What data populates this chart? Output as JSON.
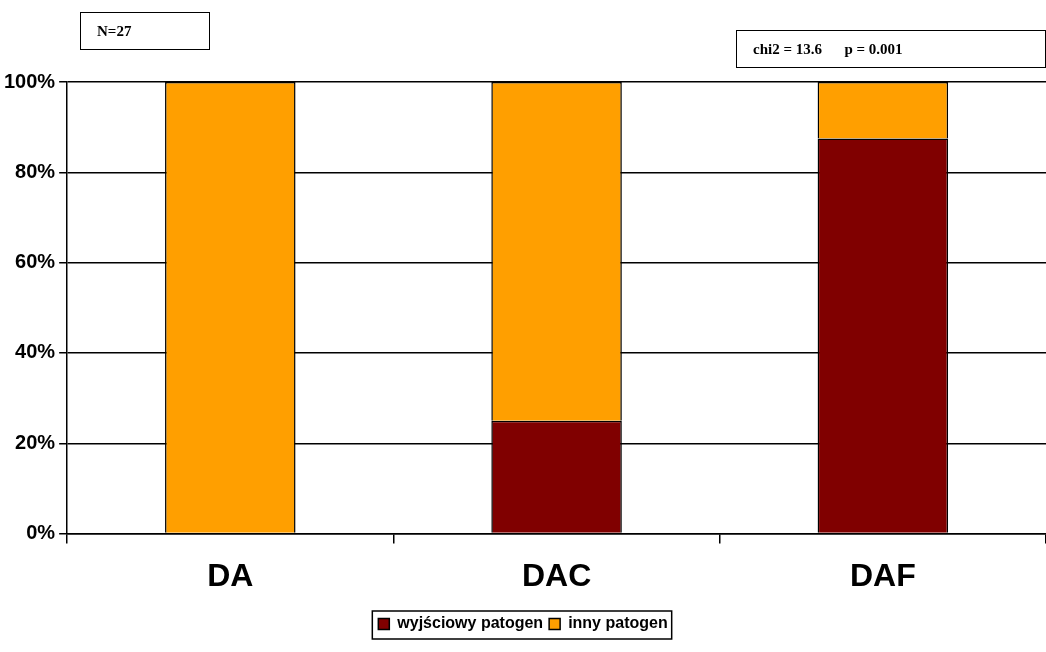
{
  "chart_data": {
    "type": "bar",
    "stacked": true,
    "categories": [
      "DA",
      "DAC",
      "DAF"
    ],
    "series": [
      {
        "name": "wyjściowy patogen",
        "color": "#800000",
        "values": [
          0,
          25,
          87.5
        ]
      },
      {
        "name": "inny patogen",
        "color": "#ff9f00",
        "values": [
          100,
          75,
          12.5
        ]
      }
    ],
    "ylim": [
      0,
      100
    ],
    "yticks": [
      {
        "value": 0,
        "label": "0%"
      },
      {
        "value": 20,
        "label": "20%"
      },
      {
        "value": 40,
        "label": "40%"
      },
      {
        "value": 60,
        "label": "60%"
      },
      {
        "value": 80,
        "label": "80%"
      },
      {
        "value": 100,
        "label": "100%"
      }
    ],
    "grid": "y",
    "legend": "bottom",
    "annotations": [
      "N=27",
      "chi2 = 13.6      p = 0.001"
    ]
  }
}
